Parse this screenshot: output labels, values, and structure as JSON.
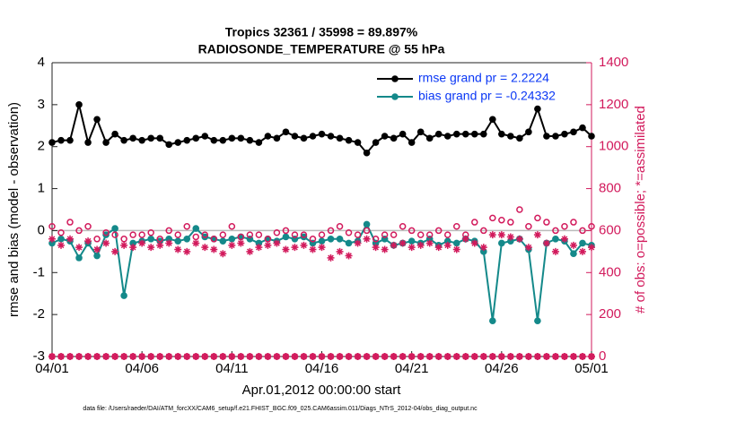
{
  "chart_data": {
    "type": "line",
    "title": "Tropics 32361 / 35998 = 89.897%",
    "subtitle": "RADIOSONDE_TEMPERATURE @ 55 hPa",
    "xlabel": "Apr.01,2012 00:00:00 start",
    "ylabel": "rmse and bias (model - observation)",
    "y2label": "# of obs: o=possible; *=assimilated",
    "footnote": "data file: /Users/raeder/DAI/ATM_forcXX/CAM6_setup/f.e21.FHIST_BGC.f09_025.CAM6assim.011/Diags_NTrS_2012-04/obs_diag_output.nc",
    "xlim": [
      0,
      30
    ],
    "xticks": [
      {
        "value": 0,
        "label": "04/01"
      },
      {
        "value": 5,
        "label": "04/06"
      },
      {
        "value": 10,
        "label": "04/11"
      },
      {
        "value": 15,
        "label": "04/16"
      },
      {
        "value": 20,
        "label": "04/21"
      },
      {
        "value": 25,
        "label": "04/26"
      },
      {
        "value": 30,
        "label": "05/01"
      }
    ],
    "ylim": [
      -3,
      4
    ],
    "yticks": [
      -3,
      -2,
      -1,
      0,
      1,
      2,
      3,
      4
    ],
    "y2lim": [
      0,
      1400
    ],
    "y2ticks": [
      0,
      200,
      400,
      600,
      800,
      1000,
      1200,
      1400
    ],
    "legend": "upper right",
    "x": [
      0,
      0.5,
      1,
      1.5,
      2,
      2.5,
      3,
      3.5,
      4,
      4.5,
      5,
      5.5,
      6,
      6.5,
      7,
      7.5,
      8,
      8.5,
      9,
      9.5,
      10,
      10.5,
      11,
      11.5,
      12,
      12.5,
      13,
      13.5,
      14,
      14.5,
      15,
      15.5,
      16,
      16.5,
      17,
      17.5,
      18,
      18.5,
      19,
      19.5,
      20,
      20.5,
      21,
      21.5,
      22,
      22.5,
      23,
      23.5,
      24,
      24.5,
      25,
      25.5,
      26,
      26.5,
      27,
      27.5,
      28,
      28.5,
      29,
      29.5,
      30
    ],
    "series": [
      {
        "name": "rmse grand pr = 2.2224",
        "color": "#000000",
        "marker": "dot",
        "line": true,
        "values": [
          2.1,
          2.15,
          2.15,
          3.0,
          2.1,
          2.65,
          2.1,
          2.3,
          2.15,
          2.2,
          2.15,
          2.2,
          2.2,
          2.05,
          2.1,
          2.15,
          2.2,
          2.25,
          2.15,
          2.15,
          2.2,
          2.2,
          2.15,
          2.1,
          2.25,
          2.2,
          2.35,
          2.25,
          2.2,
          2.25,
          2.3,
          2.25,
          2.2,
          2.15,
          2.1,
          1.85,
          2.1,
          2.25,
          2.2,
          2.3,
          2.1,
          2.35,
          2.2,
          2.3,
          2.25,
          2.3,
          2.3,
          2.3,
          2.3,
          2.65,
          2.3,
          2.25,
          2.2,
          2.35,
          2.9,
          2.25,
          2.25,
          2.3,
          2.35,
          2.45,
          2.25
        ]
      },
      {
        "name": "bias grand pr = -0.24332",
        "color": "#14898a",
        "marker": "dot",
        "line": true,
        "values": [
          -0.3,
          -0.2,
          -0.25,
          -0.65,
          -0.3,
          -0.6,
          -0.1,
          0.05,
          -1.55,
          -0.3,
          -0.25,
          -0.2,
          -0.25,
          -0.2,
          -0.25,
          -0.2,
          0.05,
          -0.15,
          -0.2,
          -0.25,
          -0.2,
          -0.15,
          -0.2,
          -0.3,
          -0.2,
          -0.25,
          -0.15,
          -0.2,
          -0.15,
          -0.3,
          -0.25,
          -0.2,
          -0.2,
          -0.3,
          -0.25,
          0.15,
          -0.3,
          -0.2,
          -0.35,
          -0.3,
          -0.25,
          -0.3,
          -0.2,
          -0.35,
          -0.25,
          -0.3,
          -0.2,
          -0.25,
          -0.5,
          -2.15,
          -0.3,
          -0.25,
          -0.2,
          -0.45,
          -2.15,
          -0.3,
          -0.2,
          -0.25,
          -0.55,
          -0.3,
          -0.35
        ]
      },
      {
        "color": "#d21a5c",
        "marker": "circle",
        "axis": "y2",
        "values": [
          620,
          590,
          640,
          600,
          620,
          560,
          590,
          580,
          560,
          580,
          580,
          590,
          560,
          600,
          580,
          620,
          570,
          580,
          560,
          580,
          620,
          570,
          580,
          580,
          560,
          590,
          600,
          580,
          580,
          560,
          580,
          600,
          620,
          590,
          580,
          600,
          560,
          580,
          580,
          620,
          600,
          580,
          580,
          600,
          580,
          620,
          580,
          640,
          600,
          660,
          650,
          640,
          700,
          620,
          660,
          640,
          600,
          620,
          640,
          600,
          620
        ]
      },
      {
        "color": "#d21a5c",
        "marker": "asterisk",
        "axis": "y2",
        "values": [
          560,
          530,
          560,
          520,
          550,
          510,
          540,
          500,
          530,
          520,
          540,
          520,
          530,
          540,
          510,
          500,
          540,
          520,
          510,
          490,
          530,
          540,
          500,
          520,
          530,
          540,
          510,
          520,
          530,
          510,
          520,
          470,
          500,
          480,
          540,
          560,
          520,
          510,
          530,
          540,
          520,
          530,
          540,
          520,
          530,
          510,
          560,
          540,
          520,
          580,
          580,
          570,
          560,
          520,
          580,
          540,
          500,
          560,
          530,
          500,
          520
        ]
      },
      {
        "color": "#d21a5c",
        "marker": "circle",
        "axis": "y2",
        "values": [
          0,
          0,
          0,
          0,
          0,
          0,
          0,
          0,
          0,
          0,
          0,
          0,
          0,
          0,
          0,
          0,
          0,
          0,
          0,
          0,
          0,
          0,
          0,
          0,
          0,
          0,
          0,
          0,
          0,
          0,
          0,
          0,
          0,
          0,
          0,
          0,
          0,
          0,
          0,
          0,
          0,
          0,
          0,
          0,
          0,
          0,
          0,
          0,
          0,
          0,
          0,
          0,
          0,
          0,
          0,
          0,
          0,
          0,
          0,
          0,
          0
        ]
      },
      {
        "color": "#d21a5c",
        "marker": "asterisk",
        "axis": "y2",
        "values": [
          0,
          0,
          0,
          0,
          0,
          0,
          0,
          0,
          0,
          0,
          0,
          0,
          0,
          0,
          0,
          0,
          0,
          0,
          0,
          0,
          0,
          0,
          0,
          0,
          0,
          0,
          0,
          0,
          0,
          0,
          0,
          0,
          0,
          0,
          0,
          0,
          0,
          0,
          0,
          0,
          0,
          0,
          0,
          0,
          0,
          0,
          0,
          0,
          0,
          0,
          0,
          0,
          0,
          0,
          0,
          0,
          0,
          0,
          0,
          0,
          0
        ]
      }
    ]
  }
}
